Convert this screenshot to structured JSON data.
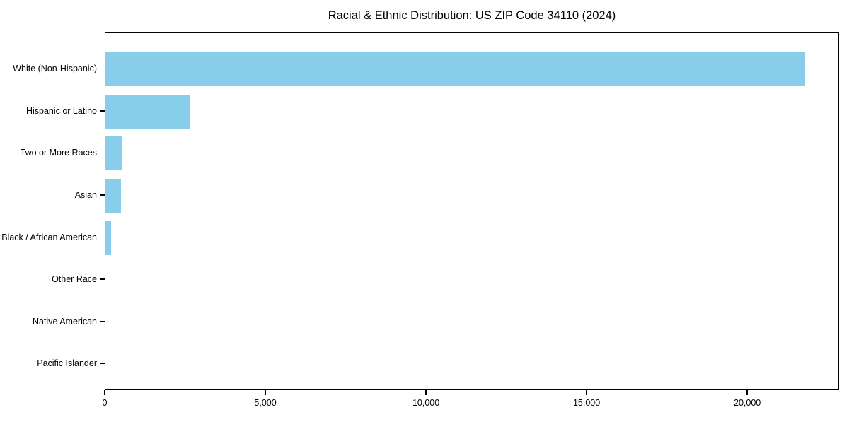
{
  "chart_data": {
    "type": "bar",
    "orientation": "horizontal",
    "title": "Racial & Ethnic Distribution: US ZIP Code 34110 (2024)",
    "categories": [
      "White (Non-Hispanic)",
      "Hispanic or Latino",
      "Two or More Races",
      "Asian",
      "Black / African American",
      "Other Race",
      "Native American",
      "Pacific Islander"
    ],
    "values": [
      21780,
      2640,
      530,
      480,
      180,
      0,
      0,
      0
    ],
    "xlabel": "",
    "ylabel": "",
    "xlim": [
      0,
      22860
    ],
    "xticks": [
      0,
      5000,
      10000,
      15000,
      20000
    ],
    "xtick_labels": [
      "0",
      "5,000",
      "10,000",
      "15,000",
      "20,000"
    ],
    "bar_color": "#87CEEB",
    "grid": false,
    "legend_position": "none",
    "background_color": "#ffffff",
    "frame_color": "#000000"
  }
}
